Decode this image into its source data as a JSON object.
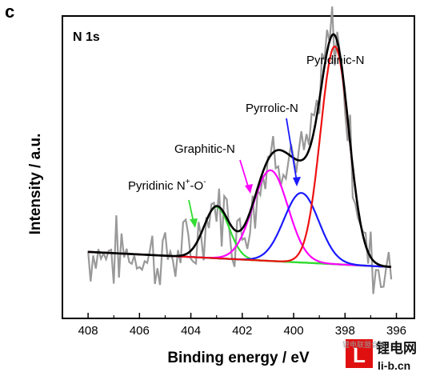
{
  "panel_label": "c",
  "watermark": {
    "cn": "锂电网",
    "en": "li-b.cn",
    "brand": "锂电联盟会长",
    "mark": "L"
  },
  "chart_data": {
    "type": "line",
    "title": "N 1s",
    "xlabel": "Binding energy / eV",
    "ylabel": "Intensity / a.u.",
    "xlim": [
      409,
      395.3
    ],
    "ylim": [
      0,
      100
    ],
    "x_reversed": true,
    "xticks": [
      408,
      406,
      404,
      402,
      400,
      398,
      396
    ],
    "grid": false,
    "legend": "none",
    "baseline": {
      "x": [
        408.0,
        396.2
      ],
      "y": [
        22,
        17
      ],
      "color": "#33dd33"
    },
    "peaks": [
      {
        "name": "Pyridinic N⁺-O⁻",
        "center": 403.0,
        "height": 17,
        "fwhm": 1.15,
        "color": "#33dd33"
      },
      {
        "name": "Graphitic-N",
        "center": 400.9,
        "height": 30,
        "fwhm": 1.6,
        "color": "#ff00ff"
      },
      {
        "name": "Pyrrolic-N",
        "center": 399.7,
        "height": 23,
        "fwhm": 1.6,
        "color": "#1a1aff"
      },
      {
        "name": "Pyridinic-N",
        "center": 398.4,
        "height": 72,
        "fwhm": 1.3,
        "color": "#ee1111"
      }
    ],
    "envelope_color": "#000000",
    "raw_color": "#999999",
    "annotations": [
      {
        "text": "Pyridinic-N",
        "color": "#000000"
      },
      {
        "text": "Pyrrolic-N",
        "color": "#1a1aff"
      },
      {
        "text": "Graphitic-N",
        "color": "#ff00ff"
      },
      {
        "text_main": "Pyridinic N",
        "sup1": "+",
        "mid": "-O",
        "sup2": "-",
        "color": "#33dd33"
      }
    ]
  }
}
